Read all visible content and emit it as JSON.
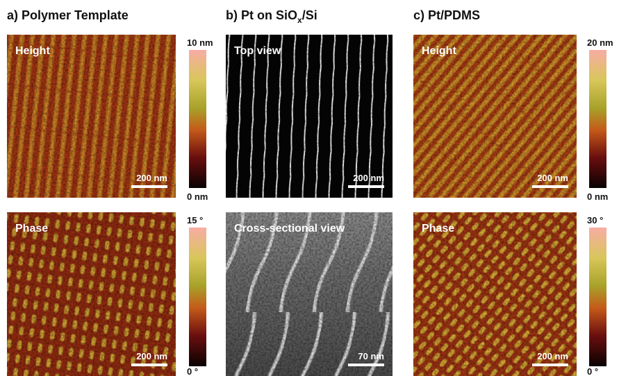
{
  "panels": [
    {
      "title_parts": [
        "a) Polymer Template"
      ],
      "images": [
        {
          "label": "Height",
          "scale_bar": "200 nm",
          "colorbar": {
            "max": "10 nm",
            "min": "0 nm"
          }
        },
        {
          "label": "Phase",
          "scale_bar": "200 nm",
          "colorbar": {
            "max": "15 °",
            "min": "0 °"
          }
        }
      ]
    },
    {
      "title_parts": [
        "b) Pt on SiO",
        "x",
        "/Si"
      ],
      "images": [
        {
          "label": "Top view",
          "scale_bar": "200 nm"
        },
        {
          "label": "Cross-sectional view",
          "scale_bar": "70 nm"
        }
      ]
    },
    {
      "title_parts": [
        "c) Pt/PDMS"
      ],
      "images": [
        {
          "label": "Height",
          "scale_bar": "200 nm",
          "colorbar": {
            "max": "20 nm",
            "min": "0 nm"
          }
        },
        {
          "label": "Phase",
          "scale_bar": "200 nm",
          "colorbar": {
            "max": "30 °",
            "min": "0 °"
          }
        }
      ]
    }
  ]
}
